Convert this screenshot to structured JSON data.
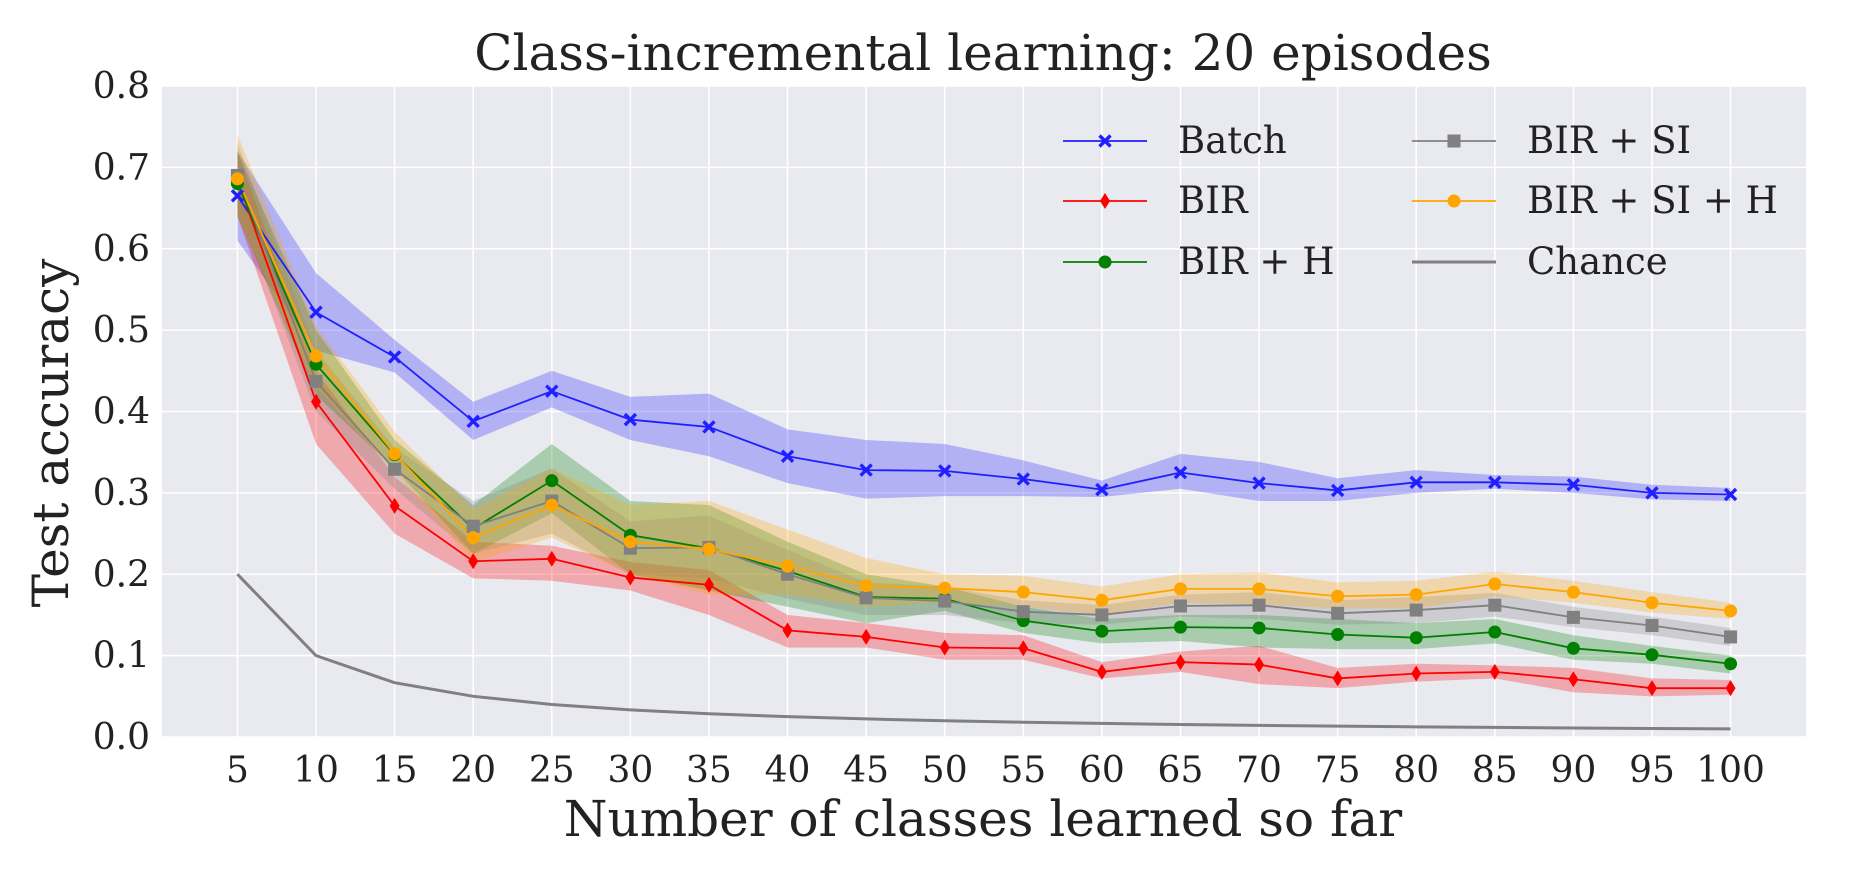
{
  "chart_data": {
    "type": "line",
    "title": "Class-incremental learning: 20 episodes",
    "xlabel": "Number of classes learned so far",
    "ylabel": "Test accuracy",
    "x": [
      5,
      10,
      15,
      20,
      25,
      30,
      35,
      40,
      45,
      50,
      55,
      60,
      65,
      70,
      75,
      80,
      85,
      90,
      95,
      100
    ],
    "xticks": [
      "5",
      "10",
      "15",
      "20",
      "25",
      "30",
      "35",
      "40",
      "45",
      "50",
      "55",
      "60",
      "65",
      "70",
      "75",
      "80",
      "85",
      "90",
      "95",
      "100"
    ],
    "yticks": [
      "0.0",
      "0.1",
      "0.2",
      "0.3",
      "0.4",
      "0.5",
      "0.6",
      "0.7",
      "0.8"
    ],
    "xlim": [
      0.2,
      104.8
    ],
    "ylim": [
      0.0,
      0.8
    ],
    "grid": true,
    "legend_position": "top-right",
    "background_color": "#e9e9f0",
    "series": [
      {
        "name": "Batch",
        "color": "#1f1fff",
        "marker": "x",
        "values": [
          0.665,
          0.522,
          0.467,
          0.388,
          0.425,
          0.39,
          0.381,
          0.345,
          0.328,
          0.327,
          0.317,
          0.304,
          0.325,
          0.312,
          0.303,
          0.313,
          0.313,
          0.31,
          0.3,
          0.298
        ],
        "lower": [
          0.61,
          0.475,
          0.448,
          0.365,
          0.405,
          0.365,
          0.345,
          0.312,
          0.293,
          0.296,
          0.296,
          0.295,
          0.305,
          0.29,
          0.29,
          0.3,
          0.305,
          0.3,
          0.292,
          0.29
        ],
        "upper": [
          0.72,
          0.57,
          0.488,
          0.412,
          0.45,
          0.418,
          0.422,
          0.378,
          0.365,
          0.36,
          0.34,
          0.315,
          0.348,
          0.338,
          0.318,
          0.328,
          0.322,
          0.32,
          0.31,
          0.306
        ]
      },
      {
        "name": "BIR",
        "color": "#ff0000",
        "marker": "diamond",
        "values": [
          0.685,
          0.412,
          0.284,
          0.216,
          0.219,
          0.196,
          0.187,
          0.131,
          0.123,
          0.11,
          0.109,
          0.08,
          0.092,
          0.089,
          0.072,
          0.078,
          0.08,
          0.071,
          0.06,
          0.06
        ],
        "lower": [
          0.64,
          0.36,
          0.25,
          0.195,
          0.192,
          0.18,
          0.15,
          0.11,
          0.11,
          0.095,
          0.095,
          0.072,
          0.08,
          0.065,
          0.06,
          0.068,
          0.072,
          0.055,
          0.05,
          0.052
        ],
        "upper": [
          0.72,
          0.45,
          0.32,
          0.24,
          0.235,
          0.215,
          0.205,
          0.15,
          0.14,
          0.128,
          0.125,
          0.092,
          0.105,
          0.112,
          0.085,
          0.09,
          0.088,
          0.085,
          0.072,
          0.07
        ]
      },
      {
        "name": "BIR + H",
        "color": "#008000",
        "marker": "circle",
        "values": [
          0.68,
          0.458,
          0.347,
          0.256,
          0.315,
          0.248,
          0.232,
          0.204,
          0.172,
          0.17,
          0.143,
          0.13,
          0.135,
          0.134,
          0.126,
          0.122,
          0.129,
          0.109,
          0.101,
          0.09
        ],
        "lower": [
          0.64,
          0.42,
          0.33,
          0.225,
          0.275,
          0.2,
          0.18,
          0.16,
          0.14,
          0.155,
          0.128,
          0.115,
          0.118,
          0.11,
          0.108,
          0.108,
          0.115,
          0.095,
          0.09,
          0.078
        ],
        "upper": [
          0.72,
          0.5,
          0.365,
          0.285,
          0.36,
          0.29,
          0.285,
          0.24,
          0.2,
          0.185,
          0.16,
          0.145,
          0.15,
          0.15,
          0.145,
          0.14,
          0.145,
          0.125,
          0.112,
          0.1
        ]
      },
      {
        "name": "BIR + SI",
        "color": "#808080",
        "marker": "square",
        "values": [
          0.69,
          0.437,
          0.329,
          0.259,
          0.29,
          0.232,
          0.233,
          0.2,
          0.171,
          0.167,
          0.154,
          0.15,
          0.161,
          0.162,
          0.152,
          0.156,
          0.162,
          0.147,
          0.137,
          0.123
        ],
        "lower": [
          0.65,
          0.4,
          0.305,
          0.225,
          0.25,
          0.2,
          0.195,
          0.17,
          0.15,
          0.15,
          0.14,
          0.138,
          0.148,
          0.145,
          0.138,
          0.14,
          0.148,
          0.135,
          0.125,
          0.112
        ],
        "upper": [
          0.73,
          0.475,
          0.355,
          0.29,
          0.33,
          0.265,
          0.272,
          0.23,
          0.19,
          0.185,
          0.168,
          0.162,
          0.175,
          0.178,
          0.168,
          0.172,
          0.177,
          0.16,
          0.148,
          0.134
        ]
      },
      {
        "name": "BIR + SI + H",
        "color": "#ffa500",
        "marker": "circle",
        "values": [
          0.686,
          0.468,
          0.348,
          0.245,
          0.285,
          0.24,
          0.231,
          0.21,
          0.186,
          0.183,
          0.178,
          0.168,
          0.182,
          0.182,
          0.173,
          0.175,
          0.188,
          0.178,
          0.165,
          0.155
        ],
        "lower": [
          0.64,
          0.43,
          0.325,
          0.215,
          0.245,
          0.2,
          0.175,
          0.175,
          0.16,
          0.165,
          0.16,
          0.15,
          0.165,
          0.163,
          0.158,
          0.158,
          0.173,
          0.165,
          0.153,
          0.145
        ],
        "upper": [
          0.74,
          0.505,
          0.375,
          0.28,
          0.33,
          0.285,
          0.29,
          0.255,
          0.22,
          0.2,
          0.198,
          0.185,
          0.2,
          0.202,
          0.19,
          0.192,
          0.203,
          0.192,
          0.178,
          0.165
        ]
      },
      {
        "name": "Chance",
        "color": "#808080",
        "marker": "none",
        "values": [
          0.2,
          0.1,
          0.0667,
          0.05,
          0.04,
          0.0333,
          0.0286,
          0.025,
          0.0222,
          0.02,
          0.0182,
          0.0167,
          0.0154,
          0.0143,
          0.0133,
          0.0125,
          0.0118,
          0.0111,
          0.0105,
          0.01
        ]
      }
    ]
  }
}
